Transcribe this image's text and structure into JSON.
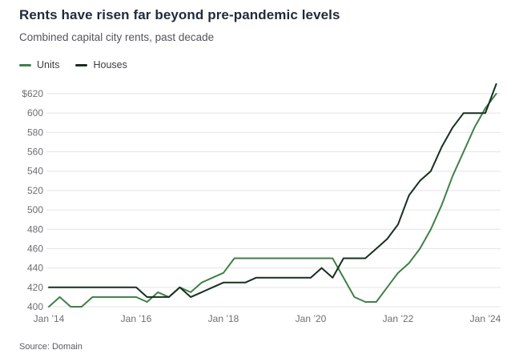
{
  "header": {
    "title": "Rents have risen far beyond pre-pandemic levels",
    "subtitle": "Combined capital city rents, past decade"
  },
  "legend": {
    "items": [
      {
        "label": "Units",
        "color": "#3f8048"
      },
      {
        "label": "Houses",
        "color": "#16301d"
      }
    ]
  },
  "source": "Source: Domain",
  "chart_data": {
    "type": "line",
    "title": "Rents have risen far beyond pre-pandemic levels",
    "subtitle": "Combined capital city rents, past decade",
    "x_unit": "quarters from Jan 2014 to Mar 2024",
    "x_tick_indices": [
      0,
      8,
      16,
      24,
      32,
      40
    ],
    "x_tick_labels": [
      "Jan ’14",
      "Jan ’16",
      "Jan ’18",
      "Jan ’20",
      "Jan ’22",
      "Jan ’24"
    ],
    "y_ticks": [
      400,
      420,
      440,
      460,
      480,
      500,
      520,
      540,
      560,
      580,
      600,
      620
    ],
    "y_tick_labels": [
      "400",
      "420",
      "440",
      "460",
      "480",
      "500",
      "520",
      "540",
      "560",
      "580",
      "600",
      "$620"
    ],
    "ylim": [
      400,
      620
    ],
    "grid": "horizontal",
    "legend_position": "top-left",
    "series": [
      {
        "name": "Units",
        "color": "#3f8048",
        "values": [
          400,
          410,
          400,
          400,
          410,
          410,
          410,
          410,
          410,
          405,
          415,
          410,
          420,
          415,
          425,
          430,
          435,
          450,
          450,
          450,
          450,
          450,
          450,
          450,
          450,
          450,
          450,
          430,
          410,
          405,
          405,
          420,
          435,
          445,
          460,
          480,
          505,
          535,
          560,
          585,
          605,
          620
        ]
      },
      {
        "name": "Houses",
        "color": "#16301d",
        "values": [
          420,
          420,
          420,
          420,
          420,
          420,
          420,
          420,
          420,
          410,
          410,
          410,
          420,
          410,
          415,
          420,
          425,
          425,
          425,
          430,
          430,
          430,
          430,
          430,
          430,
          440,
          430,
          450,
          450,
          450,
          460,
          470,
          485,
          515,
          530,
          540,
          565,
          585,
          600,
          600,
          600,
          630
        ]
      }
    ]
  }
}
